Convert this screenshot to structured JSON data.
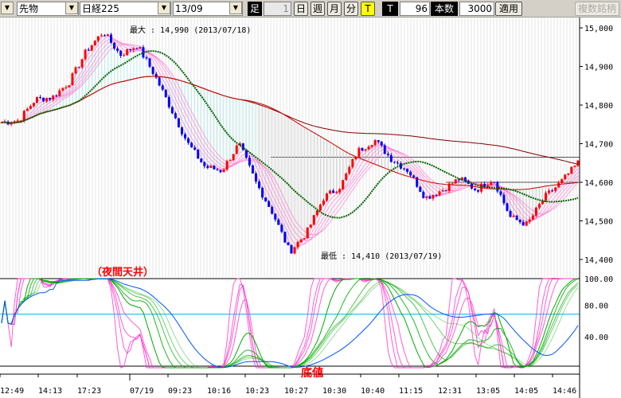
{
  "toolbar": {
    "menu_icon": "dropdown-arrow",
    "instrument_type": "先物",
    "instrument": "日経225",
    "contract": "13/09",
    "ashi_label": "足",
    "interval_value": "1",
    "day_btn": "日",
    "week_btn": "週",
    "month_btn": "月",
    "minute_btn": "分",
    "tick_btn": "T",
    "t_label": "T",
    "t_value": "96",
    "count_label": "本数",
    "count_value": "3000",
    "apply_btn": "適用",
    "multi_btn": "複数銘柄"
  },
  "colors": {
    "up": "#ff0000",
    "down": "#0000ff",
    "ma_short": "#006400",
    "ma_mid": "#cc0000",
    "ma_long": "#800000",
    "ribbon": "#ff66cc",
    "osc_blue": "#0055ff",
    "osc_pink": "#ff33cc",
    "osc_green": "#00aa00",
    "hline": "#00aaff"
  },
  "annotations": {
    "high": "最大 : 14,990 (2013/07/18)",
    "low": "最低 : 14,410 (2013/07/19)",
    "night_top": "（夜間天井）",
    "bottom": "底値"
  },
  "chart_data": {
    "type": "candlestick",
    "price_axis": {
      "ticks": [
        "15,000",
        "14,900",
        "14,800",
        "14,700",
        "14,600",
        "14,500",
        "14,400"
      ],
      "range": [
        14380,
        15020
      ]
    },
    "osc_axis": {
      "ticks": [
        "100.00",
        "80.00",
        "40.00"
      ]
    },
    "x_ticks": [
      "12:49",
      "14:13",
      "17:23",
      "07/19",
      "09:23",
      "10:16",
      "10:23",
      "10:27",
      "10:30",
      "10:40",
      "11:15",
      "12:31",
      "13:05",
      "14:05",
      "14:46"
    ],
    "close_path": [
      14755,
      14760,
      14815,
      14820,
      14860,
      14940,
      14990,
      14930,
      14955,
      14880,
      14790,
      14700,
      14640,
      14630,
      14700,
      14600,
      14520,
      14420,
      14470,
      14560,
      14590,
      14680,
      14710,
      14660,
      14630,
      14560,
      14580,
      14610,
      14580,
      14610,
      14510,
      14490,
      14560,
      14600,
      14650
    ],
    "reference_lines": [
      14665,
      14600
    ]
  }
}
